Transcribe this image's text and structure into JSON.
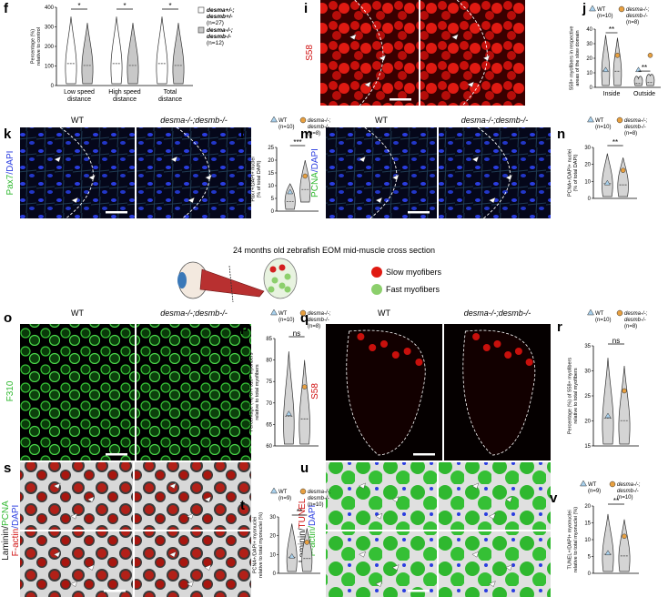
{
  "panels": {
    "f": {
      "label": "f",
      "y_label": [
        "Percentage (%)",
        "relative to control"
      ],
      "y_ticks": [
        "0",
        "100",
        "200",
        "300",
        "400"
      ],
      "x_labels": [
        [
          "Low speed",
          "distance"
        ],
        [
          "High speed",
          "distance"
        ],
        [
          "Total",
          "distance"
        ]
      ],
      "significance": [
        "*",
        "*",
        "*"
      ],
      "legend": [
        {
          "name": "desma+/-;",
          "name2": "desmb+/-",
          "n": "(n=27)"
        },
        {
          "name": "desma-/-;",
          "name2": "desmb-/-",
          "n": "(n=12)"
        }
      ]
    },
    "i": {
      "label": "i",
      "stain": [
        [
          "S58"
        ]
      ]
    },
    "j": {
      "label": "j",
      "y_label": [
        "S58+ myofibers in respective",
        "areas of the slow domain"
      ],
      "y_ticks": [
        "0",
        "10",
        "20",
        "30",
        "40"
      ],
      "x_labels": [
        [
          "Inside"
        ],
        [
          "Outside"
        ]
      ],
      "significance": [
        "**",
        "**"
      ],
      "legend": [
        {
          "name": "WT",
          "n": "(n=10)"
        },
        {
          "name": "desma-/-;",
          "name2": "desmb-/-",
          "n": "(n=8)"
        }
      ]
    },
    "k": {
      "label": "k",
      "titles": [
        "WT",
        "desma-/-;desmb-/-"
      ],
      "stain": [
        [
          "Pax7",
          "/DAPI"
        ]
      ]
    },
    "l": {
      "label": "l",
      "y_label": [
        "Pax7+/DAPI+ nuclei",
        "(% of total DAPI)"
      ],
      "y_ticks": [
        "0",
        "5",
        "10",
        "15",
        "20",
        "25"
      ],
      "significance": [
        "***"
      ],
      "legend": [
        {
          "name": "WT",
          "n": "(n=10)"
        },
        {
          "name": "desma-/-;",
          "name2": "desmb-/-",
          "n": "(n=8)"
        }
      ]
    },
    "m": {
      "label": "m",
      "titles": [
        "WT",
        "desma-/-;desmb-/-"
      ],
      "stain": [
        [
          "PCNA",
          "/DAPI"
        ]
      ]
    },
    "n": {
      "label": "n",
      "y_label": [
        "PCNA+/DAPI+ nuclei",
        "(% of total DAPI)"
      ],
      "y_ticks": [
        "0",
        "10",
        "20",
        "30"
      ],
      "significance": [
        "**"
      ],
      "legend": [
        {
          "name": "WT",
          "n": "(n=10)"
        },
        {
          "name": "desma-/-;",
          "name2": "desmb-/-",
          "n": "(n=8)"
        }
      ]
    },
    "scheme": {
      "title": "24 months old zebrafish EOM mid-muscle cross section",
      "slow": "Slow myofibers",
      "fast": "Fast myofibers"
    },
    "o": {
      "label": "o",
      "titles": [
        "WT",
        "desma-/-;desmb-/-"
      ],
      "stain": [
        [
          "F310"
        ]
      ]
    },
    "p": {
      "label": "p",
      "y_label": [
        "Percentage (%) of F310+ myofibers",
        "relative to total myofibers"
      ],
      "y_ticks": [
        "60",
        "65",
        "70",
        "75",
        "80",
        "85"
      ],
      "significance": [
        "ns"
      ],
      "legend": [
        {
          "name": "WT",
          "n": "(n=10)"
        },
        {
          "name": "desma-/-;",
          "name2": "desmb-/-",
          "n": "(n=8)"
        }
      ]
    },
    "q": {
      "label": "q",
      "titles": [
        "WT",
        "desma-/-;desmb-/-"
      ],
      "stain": [
        [
          "S58"
        ]
      ]
    },
    "r": {
      "label": "r",
      "y_label": [
        "Percentage (%) of S58+ myofibers",
        "relative to total myofibers"
      ],
      "y_ticks": [
        "15",
        "20",
        "25",
        "30",
        "35"
      ],
      "significance": [
        "ns"
      ],
      "legend": [
        {
          "name": "WT",
          "n": "(n=10)"
        },
        {
          "name": "desma-/-;",
          "name2": "desmb-/-",
          "n": "(n=8)"
        }
      ]
    },
    "s": {
      "label": "s",
      "stain": [
        [
          "Laminin/",
          "PCNA"
        ],
        [
          "F-actin",
          "/DAPI"
        ]
      ]
    },
    "t": {
      "label": "t",
      "y_label": [
        "PCNA+/DAPI+ myonuclei",
        "relative to total myonuclei (%)"
      ],
      "y_ticks": [
        "0",
        "10",
        "20",
        "30"
      ],
      "significance": [
        "**"
      ],
      "legend": [
        {
          "name": "WT",
          "n": "(n=9)"
        },
        {
          "name": "desma-/-;",
          "name2": "desmb-/-",
          "n": "(n=10)"
        }
      ]
    },
    "u": {
      "label": "u",
      "stain": [
        [
          "Laminin/",
          "TUNEL"
        ],
        [
          "F-actin/",
          "DAPI"
        ]
      ]
    },
    "v": {
      "label": "v",
      "y_label": [
        "TUNEL+/DAPI+ myonuclei",
        "relative to total myonuclei (%)"
      ],
      "y_ticks": [
        "0",
        "5",
        "10",
        "15",
        "20"
      ],
      "significance": [
        "**"
      ],
      "legend": [
        {
          "name": "WT",
          "n": "(n=9)"
        },
        {
          "name": "desma-/-;",
          "name2": "desmb-/-",
          "n": "(n=10)"
        }
      ]
    }
  }
}
